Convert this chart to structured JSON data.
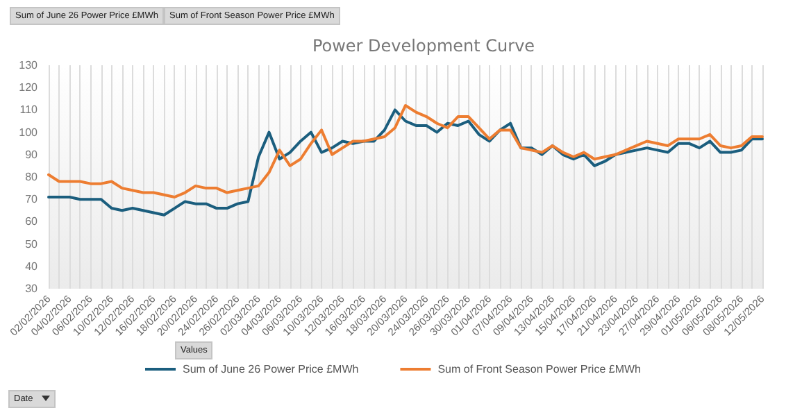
{
  "chart_data": {
    "type": "line",
    "title": "Power Development Curve",
    "categories": [
      "02/02/2026",
      null,
      "04/02/2026",
      null,
      "06/02/2026",
      null,
      "10/02/2026",
      null,
      "12/02/2026",
      null,
      "16/02/2026",
      null,
      "18/02/2026",
      null,
      "20/02/2026",
      null,
      "24/02/2026",
      null,
      "26/02/2026",
      null,
      "02/03/2026",
      null,
      "04/03/2026",
      null,
      "06/03/2026",
      null,
      "10/03/2026",
      null,
      "12/03/2026",
      null,
      "16/03/2026",
      null,
      "18/03/2026",
      null,
      "20/03/2026",
      null,
      "24/03/2026",
      null,
      "26/03/2026",
      null,
      "30/03/2026",
      null,
      "01/04/2026",
      null,
      "07/04/2026",
      null,
      "09/04/2026",
      null,
      "13/04/2026",
      null,
      "15/04/2026",
      null,
      "17/04/2026",
      null,
      "21/04/2026",
      null,
      "23/04/2026",
      null,
      "27/04/2026",
      null,
      "29/04/2026",
      null,
      "01/05/2026",
      null,
      "06/05/2026",
      null,
      "08/05/2026",
      null,
      "12/05/2026"
    ],
    "series": [
      {
        "name": "Sum of June 26 Power Price £MWh",
        "color": "#1b5e7e",
        "values": [
          71,
          71,
          71,
          70,
          70,
          70,
          66,
          65,
          66,
          65,
          64,
          63,
          66,
          69,
          68,
          68,
          66,
          66,
          68,
          69,
          89,
          100,
          88,
          91,
          96,
          100,
          91,
          93,
          96,
          95,
          96,
          96,
          101,
          110,
          105,
          103,
          103,
          100,
          104,
          103,
          105,
          99,
          96,
          101,
          104,
          93,
          93,
          90,
          94,
          90,
          88,
          90,
          85,
          87,
          90,
          91,
          92,
          93,
          92,
          91,
          95,
          95,
          93,
          96,
          91,
          91,
          92,
          97,
          97
        ]
      },
      {
        "name": "Sum of Front Season Power Price £MWh",
        "color": "#ed7d31",
        "values": [
          81,
          78,
          78,
          78,
          77,
          77,
          78,
          75,
          74,
          73,
          73,
          72,
          71,
          73,
          76,
          75,
          75,
          73,
          74,
          75,
          76,
          82,
          92,
          85,
          88,
          95,
          101,
          90,
          93,
          96,
          96,
          97,
          98,
          102,
          112,
          109,
          107,
          104,
          102,
          107,
          107,
          102,
          97,
          101,
          101,
          93,
          92,
          91,
          94,
          91,
          89,
          91,
          88,
          89,
          90,
          92,
          94,
          96,
          95,
          94,
          97,
          97,
          97,
          99,
          94,
          93,
          94,
          98,
          98
        ]
      }
    ],
    "ylim": [
      30,
      130
    ],
    "yticks": [
      30,
      40,
      50,
      60,
      70,
      80,
      90,
      100,
      110,
      120,
      130
    ],
    "grid": "x",
    "legend": "bottom",
    "marker": "none",
    "line_style": "solid",
    "annotations": [
      "Sum of June 26 Power Price £MWh",
      "Sum of Front Season Power Price £MWh",
      "Values",
      "Date"
    ]
  }
}
